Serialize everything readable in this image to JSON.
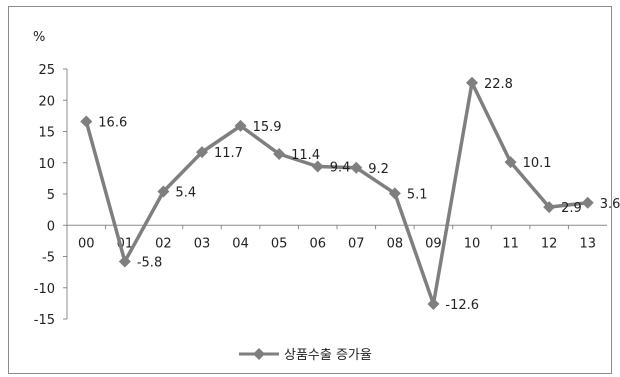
{
  "chart_data": {
    "type": "line",
    "title": "",
    "xlabel": "",
    "ylabel": "%",
    "ylim": [
      -15,
      25
    ],
    "yticks": [
      -15,
      -10,
      -5,
      0,
      5,
      10,
      15,
      20,
      25
    ],
    "categories": [
      "00",
      "01",
      "02",
      "03",
      "04",
      "05",
      "06",
      "07",
      "08",
      "09",
      "10",
      "11",
      "12",
      "13"
    ],
    "series": [
      {
        "name": "상품수출 증가율",
        "values": [
          16.6,
          -5.8,
          5.4,
          11.7,
          15.9,
          11.4,
          9.4,
          9.2,
          5.1,
          -12.6,
          22.8,
          10.1,
          2.9,
          3.6
        ],
        "data_labels": [
          "16.6",
          "-5.8",
          "5.4",
          "11.7",
          "15.9",
          "11.4",
          "9.4",
          "9.2",
          "5.1",
          "-12.6",
          "22.8",
          "10.1",
          "2.9",
          "3.6"
        ],
        "color": "#7f7f7f",
        "marker": "diamond"
      }
    ],
    "grid": false,
    "legend_position": "bottom"
  }
}
